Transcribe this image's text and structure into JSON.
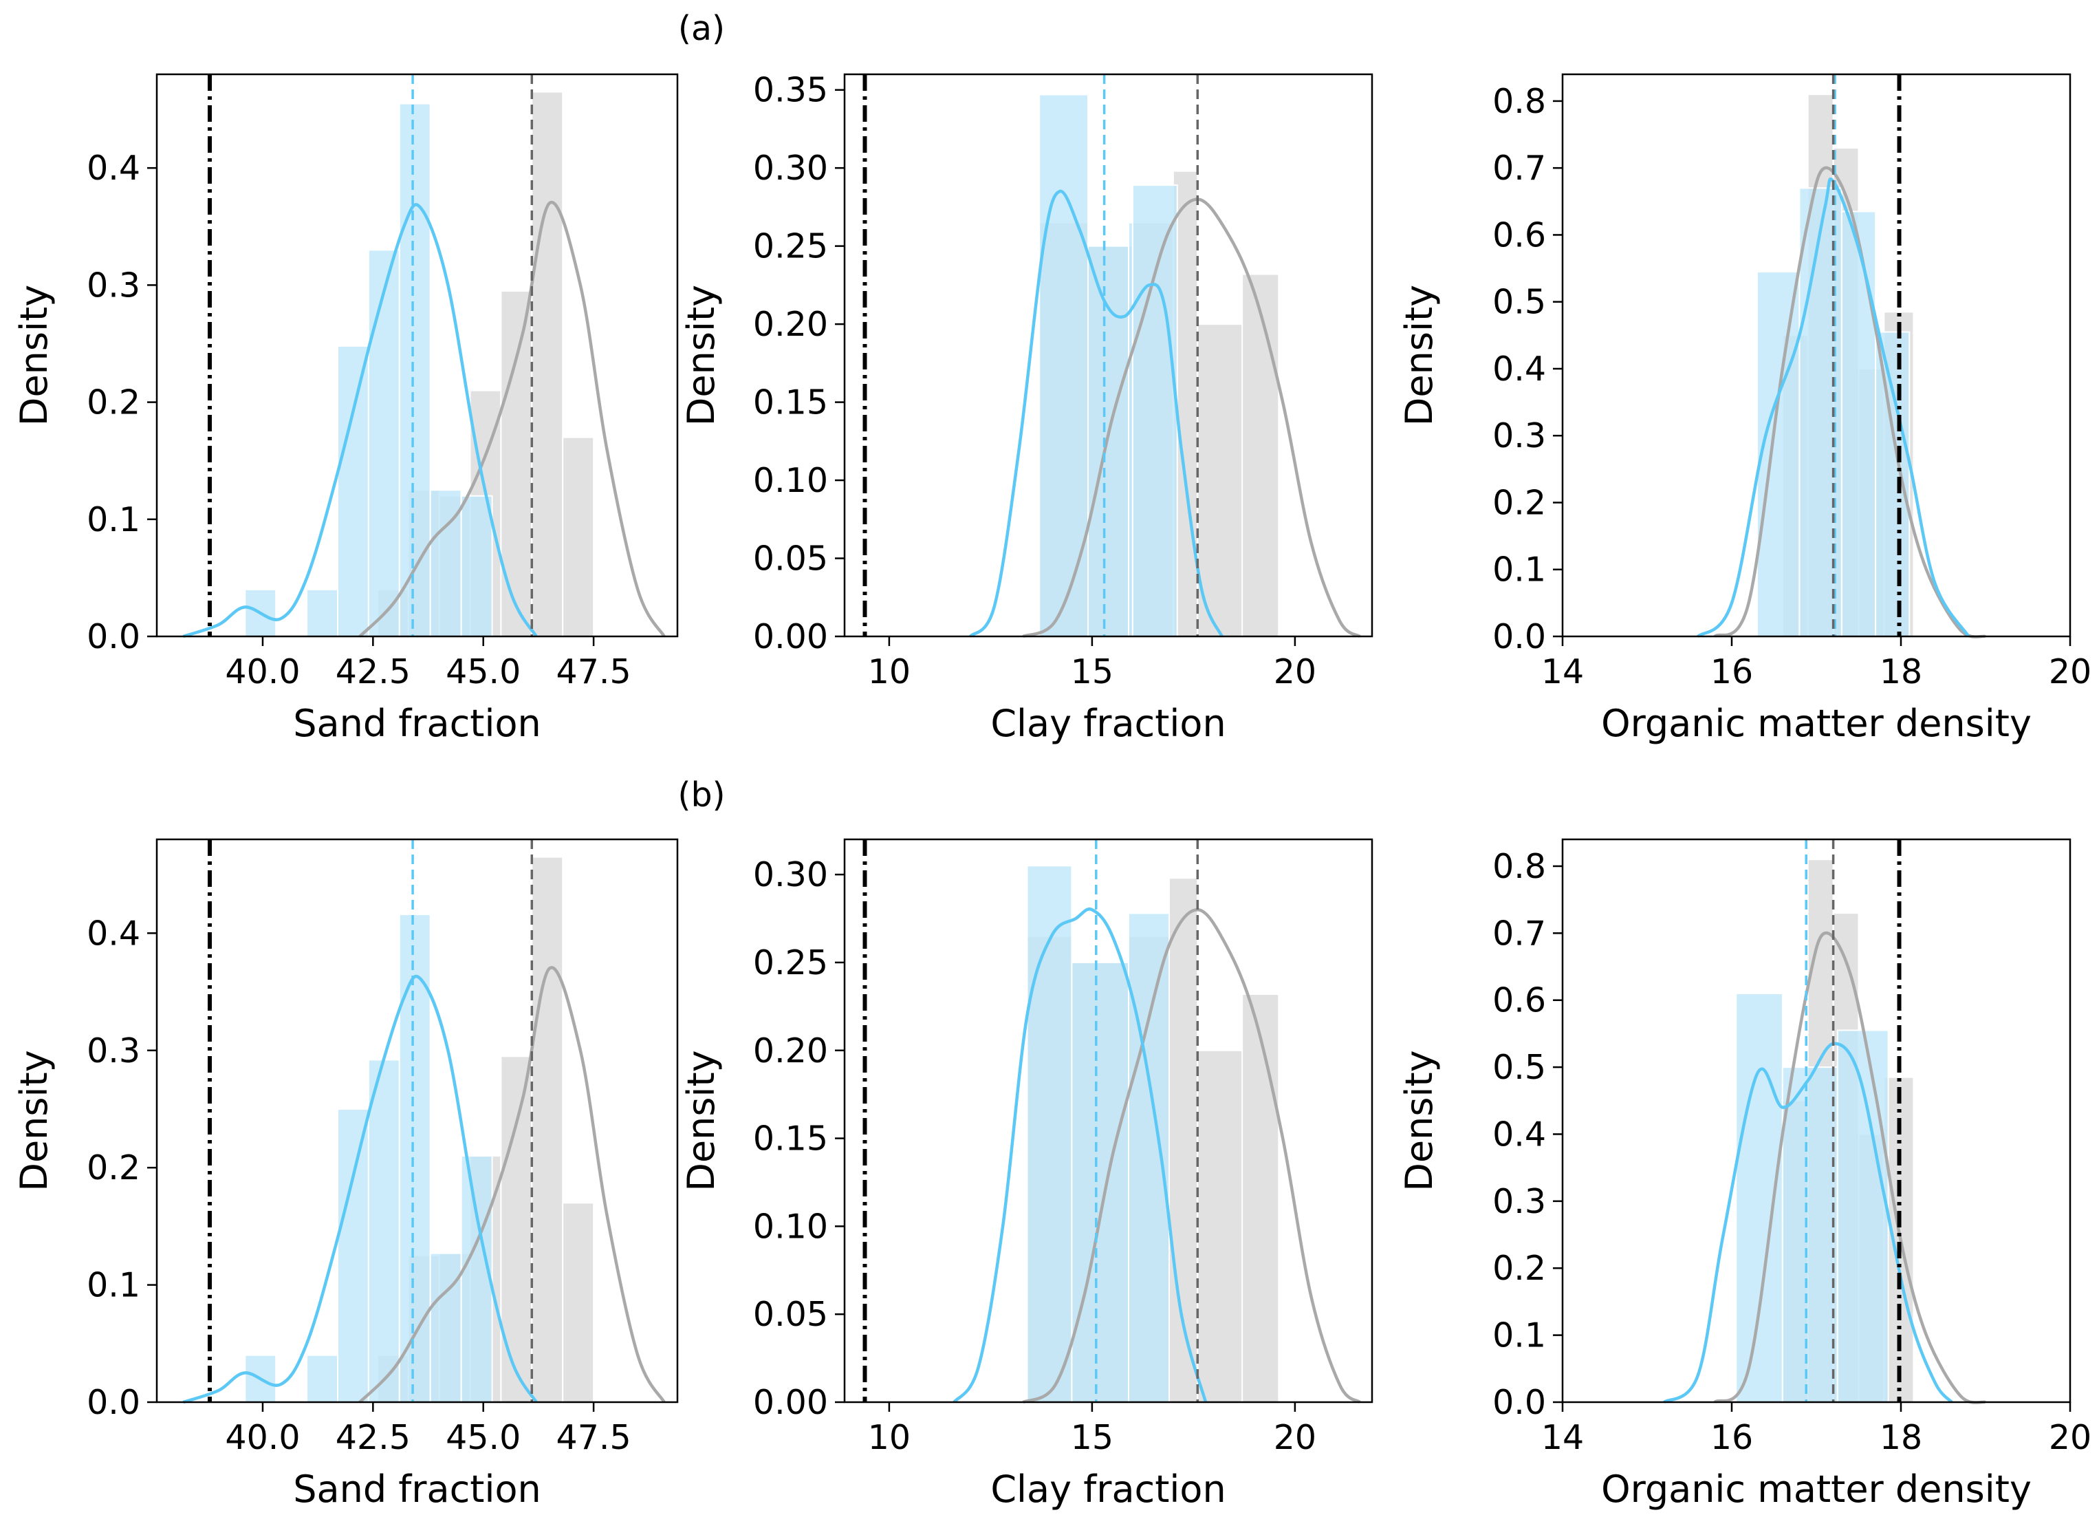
{
  "figure": {
    "row_labels": [
      "(a)",
      "(b)"
    ],
    "colors": {
      "calibrated": "#5bc8f5",
      "calibrated_fill": "#bfe7fa",
      "reference": "#a9a9a9",
      "reference_fill": "#dcdcdc",
      "reference_mean_line": "#666666",
      "true_value_line": "#000000"
    }
  },
  "chart_data": [
    {
      "id": "a-sand",
      "type": "histogram+kde",
      "row": "(a)",
      "xlabel": "Sand fraction",
      "ylabel": "Density",
      "xlim": [
        37.6,
        49.4
      ],
      "ylim": [
        0,
        0.48
      ],
      "xticks": [
        40.0,
        42.5,
        45.0,
        47.5
      ],
      "xtick_labels": [
        "40.0",
        "42.5",
        "45.0",
        "47.5"
      ],
      "yticks": [
        0.0,
        0.1,
        0.2,
        0.3,
        0.4
      ],
      "ytick_labels": [
        "0.0",
        "0.1",
        "0.2",
        "0.3",
        "0.4"
      ],
      "true_value": 38.8,
      "reference": {
        "mean": 46.1,
        "bins": [
          [
            42.6,
            43.3,
            0.04
          ],
          [
            43.3,
            44.0,
            0.125
          ],
          [
            44.0,
            44.7,
            0.12
          ],
          [
            44.7,
            45.4,
            0.21
          ],
          [
            45.4,
            46.1,
            0.295
          ],
          [
            46.1,
            46.8,
            0.465
          ],
          [
            46.8,
            47.5,
            0.17
          ]
        ],
        "kde": [
          [
            42.2,
            0
          ],
          [
            43.0,
            0.03
          ],
          [
            43.8,
            0.08
          ],
          [
            44.5,
            0.11
          ],
          [
            45.2,
            0.17
          ],
          [
            45.9,
            0.26
          ],
          [
            46.5,
            0.37
          ],
          [
            47.2,
            0.3
          ],
          [
            47.8,
            0.16
          ],
          [
            48.5,
            0.04
          ],
          [
            49.1,
            0
          ]
        ]
      },
      "calibrated": {
        "mean": 43.4,
        "bins": [
          [
            39.6,
            40.3,
            0.04
          ],
          [
            40.3,
            41.0,
            0
          ],
          [
            41.0,
            41.7,
            0.04
          ],
          [
            41.7,
            42.4,
            0.248
          ],
          [
            42.4,
            43.1,
            0.33
          ],
          [
            43.1,
            43.8,
            0.455
          ],
          [
            43.8,
            44.5,
            0.125
          ],
          [
            44.5,
            45.2,
            0.12
          ]
        ],
        "kde": [
          [
            38.2,
            0
          ],
          [
            39.0,
            0.01
          ],
          [
            39.6,
            0.025
          ],
          [
            40.4,
            0.015
          ],
          [
            41.0,
            0.05
          ],
          [
            41.7,
            0.14
          ],
          [
            42.5,
            0.26
          ],
          [
            43.2,
            0.35
          ],
          [
            43.6,
            0.365
          ],
          [
            44.2,
            0.3
          ],
          [
            44.9,
            0.15
          ],
          [
            45.6,
            0.04
          ],
          [
            46.2,
            0
          ]
        ]
      }
    },
    {
      "id": "a-clay",
      "type": "histogram+kde",
      "row": "(a)",
      "xlabel": "Clay fraction",
      "ylabel": "Density",
      "xlim": [
        8.9,
        21.9
      ],
      "ylim": [
        0,
        0.36
      ],
      "xticks": [
        10,
        15,
        20
      ],
      "xtick_labels": [
        "10",
        "15",
        "20"
      ],
      "yticks": [
        0.0,
        0.05,
        0.1,
        0.15,
        0.2,
        0.25,
        0.3,
        0.35
      ],
      "ytick_labels": [
        "0.00",
        "0.05",
        "0.10",
        "0.15",
        "0.20",
        "0.25",
        "0.30",
        "0.35"
      ],
      "true_value": 9.4,
      "reference": {
        "mean": 17.6,
        "bins": [
          [
            13.7,
            14.9,
            0.265
          ],
          [
            14.9,
            16.0,
            0.25
          ],
          [
            16.0,
            17.0,
            0.265
          ],
          [
            17.0,
            17.6,
            0.298
          ],
          [
            17.6,
            18.7,
            0.2
          ],
          [
            18.7,
            19.6,
            0.232
          ]
        ],
        "kde": [
          [
            13.3,
            0
          ],
          [
            14.1,
            0.01
          ],
          [
            14.8,
            0.06
          ],
          [
            15.5,
            0.14
          ],
          [
            16.2,
            0.2
          ],
          [
            16.9,
            0.26
          ],
          [
            17.6,
            0.28
          ],
          [
            18.3,
            0.26
          ],
          [
            19.0,
            0.22
          ],
          [
            19.7,
            0.15
          ],
          [
            20.4,
            0.06
          ],
          [
            21.1,
            0.01
          ],
          [
            21.6,
            0
          ]
        ]
      },
      "calibrated": {
        "mean": 15.3,
        "bins": [
          [
            13.7,
            14.9,
            0.347
          ],
          [
            14.9,
            15.9,
            0.25
          ],
          [
            15.9,
            16.0,
            0.265
          ],
          [
            16.0,
            17.1,
            0.289
          ]
        ],
        "kde": [
          [
            12.0,
            0
          ],
          [
            12.6,
            0.02
          ],
          [
            13.2,
            0.12
          ],
          [
            13.8,
            0.25
          ],
          [
            14.2,
            0.285
          ],
          [
            14.7,
            0.26
          ],
          [
            15.3,
            0.215
          ],
          [
            15.8,
            0.205
          ],
          [
            16.4,
            0.225
          ],
          [
            16.8,
            0.21
          ],
          [
            17.2,
            0.12
          ],
          [
            17.7,
            0.03
          ],
          [
            18.2,
            0
          ]
        ]
      }
    },
    {
      "id": "a-organic",
      "type": "histogram+kde",
      "row": "(a)",
      "xlabel": "Organic matter density",
      "ylabel": "Density",
      "xlim": [
        14,
        20
      ],
      "ylim": [
        0,
        0.84
      ],
      "xticks": [
        14,
        16,
        18,
        20
      ],
      "xtick_labels": [
        "14",
        "16",
        "18",
        "20"
      ],
      "yticks": [
        0.0,
        0.1,
        0.2,
        0.3,
        0.4,
        0.5,
        0.6,
        0.7,
        0.8
      ],
      "ytick_labels": [
        "0.0",
        "0.1",
        "0.2",
        "0.3",
        "0.4",
        "0.5",
        "0.6",
        "0.7",
        "0.8"
      ],
      "true_value": 17.98,
      "reference": {
        "mean": 17.2,
        "bins": [
          [
            16.6,
            16.9,
            0.45
          ],
          [
            16.9,
            17.2,
            0.81
          ],
          [
            17.2,
            17.5,
            0.73
          ],
          [
            17.5,
            17.8,
            0.4
          ],
          [
            17.8,
            18.15,
            0.485
          ]
        ],
        "kde": [
          [
            15.8,
            0
          ],
          [
            16.2,
            0.05
          ],
          [
            16.6,
            0.4
          ],
          [
            16.9,
            0.62
          ],
          [
            17.1,
            0.7
          ],
          [
            17.4,
            0.64
          ],
          [
            17.7,
            0.46
          ],
          [
            18.0,
            0.24
          ],
          [
            18.3,
            0.1
          ],
          [
            18.7,
            0.01
          ],
          [
            19.0,
            0
          ]
        ]
      },
      "calibrated": {
        "mean": 17.22,
        "bins": [
          [
            16.3,
            16.8,
            0.545
          ],
          [
            16.8,
            17.3,
            0.67
          ],
          [
            17.3,
            17.7,
            0.635
          ],
          [
            17.7,
            18.1,
            0.455
          ]
        ],
        "kde": [
          [
            15.6,
            0
          ],
          [
            16.0,
            0.05
          ],
          [
            16.4,
            0.3
          ],
          [
            16.8,
            0.45
          ],
          [
            17.1,
            0.64
          ],
          [
            17.2,
            0.68
          ],
          [
            17.5,
            0.58
          ],
          [
            17.8,
            0.42
          ],
          [
            18.1,
            0.26
          ],
          [
            18.4,
            0.08
          ],
          [
            18.8,
            0
          ]
        ]
      }
    },
    {
      "id": "b-sand",
      "type": "histogram+kde",
      "row": "(b)",
      "xlabel": "Sand fraction",
      "ylabel": "Density",
      "xlim": [
        37.6,
        49.4
      ],
      "ylim": [
        0,
        0.48
      ],
      "xticks": [
        40.0,
        42.5,
        45.0,
        47.5
      ],
      "xtick_labels": [
        "40.0",
        "42.5",
        "45.0",
        "47.5"
      ],
      "yticks": [
        0.0,
        0.1,
        0.2,
        0.3,
        0.4
      ],
      "ytick_labels": [
        "0.0",
        "0.1",
        "0.2",
        "0.3",
        "0.4"
      ],
      "true_value": 38.8,
      "reference": {
        "mean": 46.1,
        "bins": [
          [
            42.6,
            43.3,
            0.04
          ],
          [
            43.3,
            44.0,
            0.125
          ],
          [
            44.0,
            44.7,
            0.127
          ],
          [
            44.7,
            45.4,
            0.21
          ],
          [
            45.4,
            46.1,
            0.295
          ],
          [
            46.1,
            46.8,
            0.465
          ],
          [
            46.8,
            47.5,
            0.17
          ]
        ],
        "kde": [
          [
            42.2,
            0
          ],
          [
            43.0,
            0.03
          ],
          [
            43.8,
            0.08
          ],
          [
            44.5,
            0.11
          ],
          [
            45.2,
            0.17
          ],
          [
            45.9,
            0.26
          ],
          [
            46.5,
            0.37
          ],
          [
            47.2,
            0.3
          ],
          [
            47.8,
            0.16
          ],
          [
            48.5,
            0.04
          ],
          [
            49.1,
            0
          ]
        ]
      },
      "calibrated": {
        "mean": 43.4,
        "bins": [
          [
            39.6,
            40.3,
            0.04
          ],
          [
            40.3,
            41.0,
            0
          ],
          [
            41.0,
            41.7,
            0.04
          ],
          [
            41.7,
            42.4,
            0.25
          ],
          [
            42.4,
            43.1,
            0.292
          ],
          [
            43.1,
            43.8,
            0.416
          ],
          [
            43.8,
            44.5,
            0.127
          ],
          [
            44.5,
            45.2,
            0.21
          ]
        ],
        "kde": [
          [
            38.2,
            0
          ],
          [
            39.0,
            0.01
          ],
          [
            39.6,
            0.025
          ],
          [
            40.4,
            0.015
          ],
          [
            41.0,
            0.05
          ],
          [
            41.7,
            0.14
          ],
          [
            42.5,
            0.26
          ],
          [
            43.2,
            0.345
          ],
          [
            43.6,
            0.36
          ],
          [
            44.2,
            0.3
          ],
          [
            44.9,
            0.15
          ],
          [
            45.6,
            0.04
          ],
          [
            46.2,
            0
          ]
        ]
      }
    },
    {
      "id": "b-clay",
      "type": "histogram+kde",
      "row": "(b)",
      "xlabel": "Clay fraction",
      "ylabel": "Density",
      "xlim": [
        8.9,
        21.9
      ],
      "ylim": [
        0,
        0.32
      ],
      "xticks": [
        10,
        15,
        20
      ],
      "xtick_labels": [
        "10",
        "15",
        "20"
      ],
      "yticks": [
        0.0,
        0.05,
        0.1,
        0.15,
        0.2,
        0.25,
        0.3
      ],
      "ytick_labels": [
        "0.00",
        "0.05",
        "0.10",
        "0.15",
        "0.20",
        "0.25",
        "0.30"
      ],
      "true_value": 9.4,
      "reference": {
        "mean": 17.6,
        "bins": [
          [
            13.4,
            14.5,
            0.265
          ],
          [
            14.5,
            15.9,
            0.25
          ],
          [
            15.9,
            16.9,
            0.265
          ],
          [
            16.9,
            17.6,
            0.298
          ],
          [
            17.6,
            18.7,
            0.2
          ],
          [
            18.7,
            19.6,
            0.232
          ]
        ],
        "kde": [
          [
            13.3,
            0
          ],
          [
            14.1,
            0.01
          ],
          [
            14.8,
            0.06
          ],
          [
            15.5,
            0.14
          ],
          [
            16.2,
            0.2
          ],
          [
            16.9,
            0.26
          ],
          [
            17.6,
            0.28
          ],
          [
            18.3,
            0.26
          ],
          [
            19.0,
            0.22
          ],
          [
            19.7,
            0.15
          ],
          [
            20.4,
            0.06
          ],
          [
            21.1,
            0.01
          ],
          [
            21.6,
            0
          ]
        ]
      },
      "calibrated": {
        "mean": 15.1,
        "bins": [
          [
            13.4,
            14.5,
            0.305
          ],
          [
            14.5,
            15.9,
            0.25
          ],
          [
            15.9,
            16.9,
            0.278
          ]
        ],
        "kde": [
          [
            11.6,
            0
          ],
          [
            12.2,
            0.02
          ],
          [
            12.8,
            0.1
          ],
          [
            13.4,
            0.22
          ],
          [
            14.0,
            0.265
          ],
          [
            14.6,
            0.275
          ],
          [
            15.0,
            0.28
          ],
          [
            15.5,
            0.265
          ],
          [
            16.1,
            0.22
          ],
          [
            16.7,
            0.14
          ],
          [
            17.2,
            0.05
          ],
          [
            17.8,
            0
          ]
        ]
      }
    },
    {
      "id": "b-organic",
      "type": "histogram+kde",
      "row": "(b)",
      "xlabel": "Organic matter density",
      "ylabel": "Density",
      "xlim": [
        14,
        20
      ],
      "ylim": [
        0,
        0.84
      ],
      "xticks": [
        14,
        16,
        18,
        20
      ],
      "xtick_labels": [
        "14",
        "16",
        "18",
        "20"
      ],
      "yticks": [
        0.0,
        0.1,
        0.2,
        0.3,
        0.4,
        0.5,
        0.6,
        0.7,
        0.8
      ],
      "ytick_labels": [
        "0.0",
        "0.1",
        "0.2",
        "0.3",
        "0.4",
        "0.5",
        "0.6",
        "0.7",
        "0.8"
      ],
      "true_value": 17.98,
      "reference": {
        "mean": 17.2,
        "bins": [
          [
            16.6,
            16.9,
            0.45
          ],
          [
            16.9,
            17.2,
            0.81
          ],
          [
            17.2,
            17.5,
            0.73
          ],
          [
            17.5,
            17.8,
            0.4
          ],
          [
            17.8,
            18.15,
            0.485
          ]
        ],
        "kde": [
          [
            15.8,
            0
          ],
          [
            16.2,
            0.05
          ],
          [
            16.6,
            0.4
          ],
          [
            16.9,
            0.62
          ],
          [
            17.1,
            0.7
          ],
          [
            17.4,
            0.64
          ],
          [
            17.7,
            0.46
          ],
          [
            18.0,
            0.24
          ],
          [
            18.3,
            0.1
          ],
          [
            18.7,
            0.01
          ],
          [
            19.0,
            0
          ]
        ]
      },
      "calibrated": {
        "mean": 16.88,
        "bins": [
          [
            16.05,
            16.6,
            0.61
          ],
          [
            16.6,
            17.25,
            0.5
          ],
          [
            17.25,
            17.85,
            0.555
          ]
        ],
        "kde": [
          [
            15.2,
            0
          ],
          [
            15.6,
            0.04
          ],
          [
            15.9,
            0.25
          ],
          [
            16.3,
            0.49
          ],
          [
            16.6,
            0.44
          ],
          [
            16.9,
            0.48
          ],
          [
            17.2,
            0.535
          ],
          [
            17.5,
            0.49
          ],
          [
            17.8,
            0.31
          ],
          [
            18.1,
            0.13
          ],
          [
            18.4,
            0.03
          ],
          [
            18.6,
            0
          ]
        ]
      }
    }
  ]
}
